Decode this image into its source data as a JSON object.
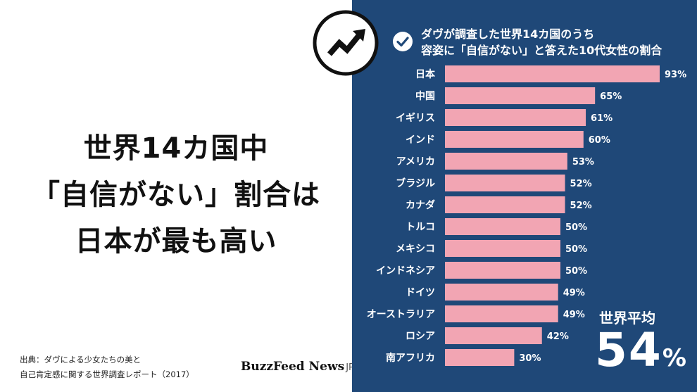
{
  "headline": {
    "line1": "世界14カ国中",
    "line2": "「自信がない」割合は",
    "line3": "日本が最も高い"
  },
  "source": {
    "line1": "出典：ダヴによる少女たちの美と",
    "line2": "自己肯定感に関する世界調査レポート（2017）"
  },
  "brand": {
    "name": "BuzzFeed News",
    "suffix": "JP"
  },
  "logo_icon": "trending-arrow-icon",
  "check_icon": "check-circle-icon",
  "colors": {
    "panel": "#1f4878",
    "bar": "#f2a5b3",
    "text": "#ffffff"
  },
  "chart_data": {
    "type": "bar",
    "orientation": "horizontal",
    "title_line1": "ダヴが調査した世界14カ国のうち",
    "title_line2": "容姿に「自信がない」と答えた10代女性の割合",
    "categories": [
      "日本",
      "中国",
      "イギリス",
      "インド",
      "アメリカ",
      "ブラジル",
      "カナダ",
      "トルコ",
      "メキシコ",
      "インドネシア",
      "ドイツ",
      "オーストラリア",
      "ロシア",
      "南アフリカ"
    ],
    "values": [
      93,
      65,
      61,
      60,
      53,
      52,
      52,
      50,
      50,
      50,
      49,
      49,
      42,
      30
    ],
    "value_labels": [
      "93%",
      "65%",
      "61%",
      "60%",
      "53%",
      "52%",
      "52%",
      "50%",
      "50%",
      "50%",
      "49%",
      "49%",
      "42%",
      "30%"
    ],
    "unit": "%",
    "xlim": [
      0,
      100
    ],
    "grid": false,
    "average": {
      "label": "世界平均",
      "value": "54",
      "unit": "%"
    }
  }
}
